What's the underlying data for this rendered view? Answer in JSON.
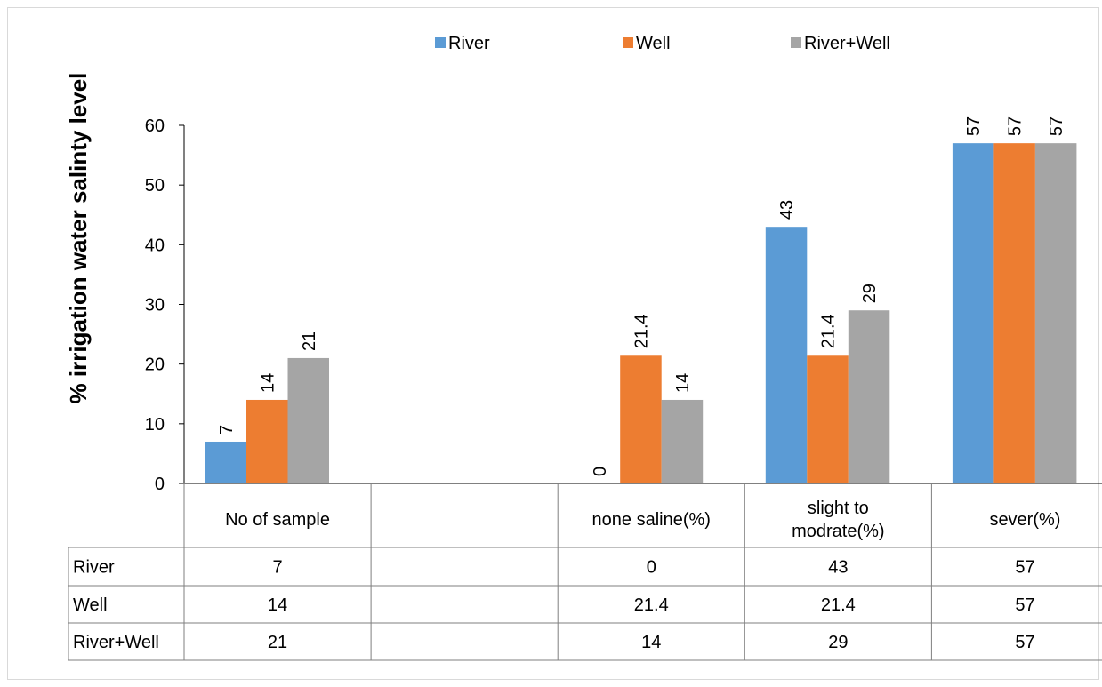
{
  "chart_data": {
    "type": "bar",
    "ylabel": "% irrigation water salinty level",
    "ylim": [
      0,
      60
    ],
    "yticks": [
      0,
      10,
      20,
      30,
      40,
      50,
      60
    ],
    "categories": [
      "No of sample",
      "",
      "none saline(%)",
      "slight to modrate(%)",
      "sever(%)"
    ],
    "category_lines": [
      [
        "No of sample"
      ],
      [
        ""
      ],
      [
        "none saline(%)"
      ],
      [
        "slight to",
        "modrate(%)"
      ],
      [
        "sever(%)"
      ]
    ],
    "series": [
      {
        "name": "River",
        "color": "#5b9bd5",
        "values": [
          7,
          null,
          0,
          43,
          57
        ]
      },
      {
        "name": "Well",
        "color": "#ed7d31",
        "values": [
          14,
          null,
          21.4,
          21.4,
          57
        ]
      },
      {
        "name": "River+Well",
        "color": "#a5a5a5",
        "values": [
          21,
          null,
          14,
          29,
          57
        ]
      }
    ],
    "legend_position": "top",
    "data_table": true,
    "grid": false
  }
}
